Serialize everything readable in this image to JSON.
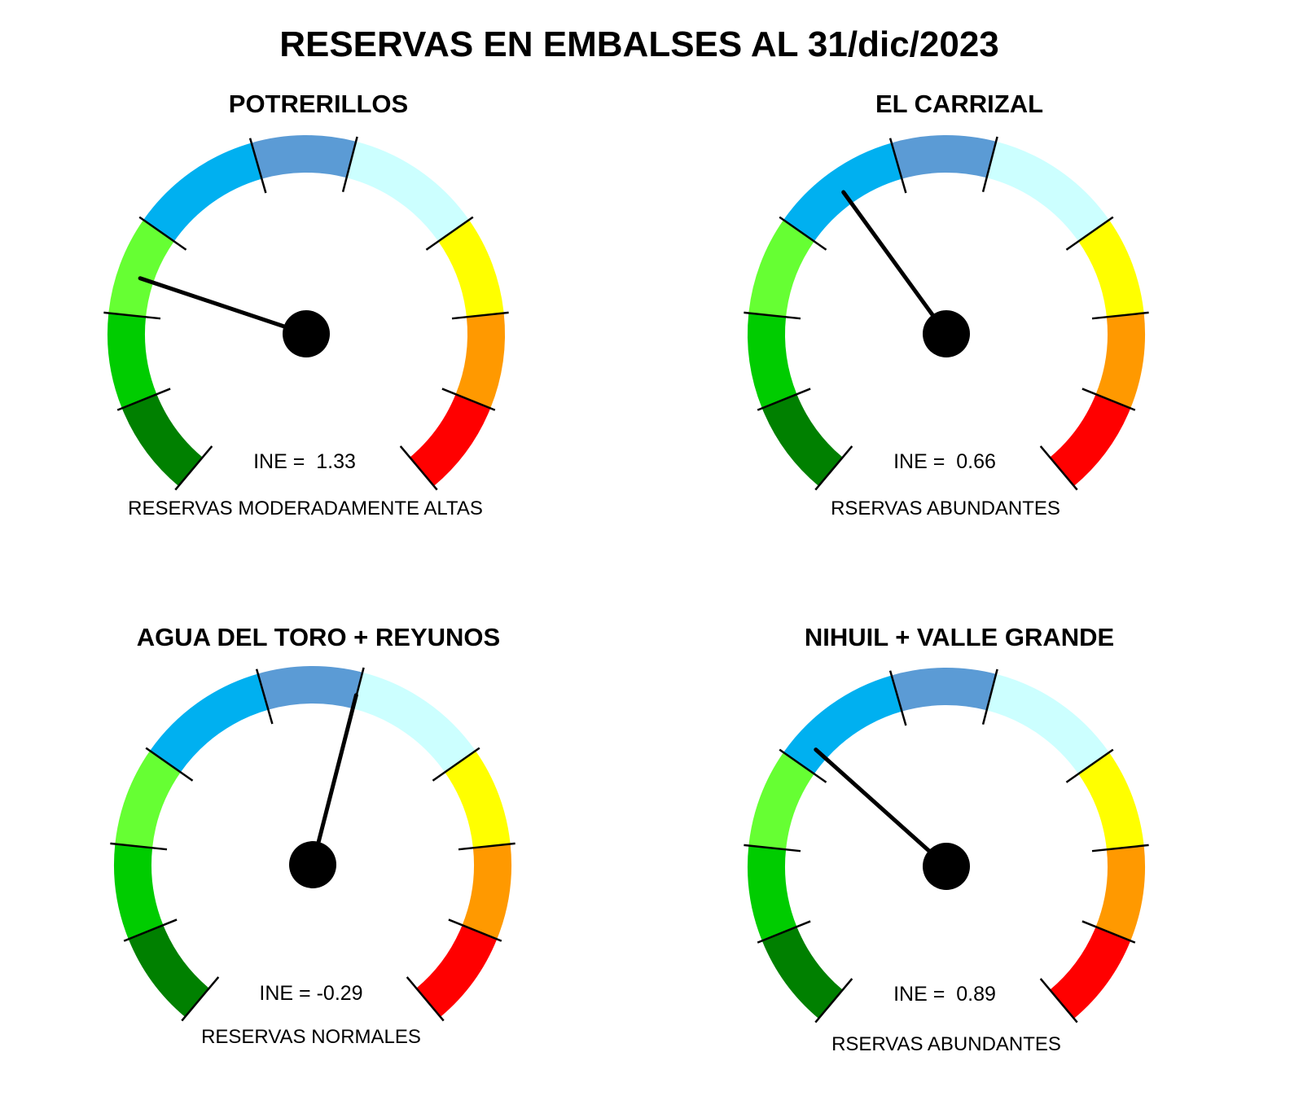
{
  "chart_data": {
    "type": "gauge",
    "title": "RESERVAS EN EMBALSES AL 31/dic/2023",
    "scale_colors": [
      "#008000",
      "#00cc00",
      "#66ff33",
      "#00b0f0",
      "#5b9bd5",
      "#ccffff",
      "#ffff00",
      "#ff9900",
      "#ff0000"
    ],
    "gauges": [
      {
        "name": "POTRERILLOS",
        "ine": 1.33,
        "ine_label": "INE =  1.33",
        "status": "RESERVAS MODERADAMENTE ALTAS"
      },
      {
        "name": "EL CARRIZAL",
        "ine": 0.66,
        "ine_label": "INE =  0.66",
        "status": "RSERVAS ABUNDANTES"
      },
      {
        "name": "AGUA DEL TORO + REYUNOS",
        "ine": -0.29,
        "ine_label": "INE = -0.29",
        "status": "RESERVAS NORMALES"
      },
      {
        "name": "NIHUIL + VALLE GRANDE",
        "ine": 0.89,
        "ine_label": "INE =  0.89",
        "status": "RSERVAS ABUNDANTES"
      }
    ]
  }
}
